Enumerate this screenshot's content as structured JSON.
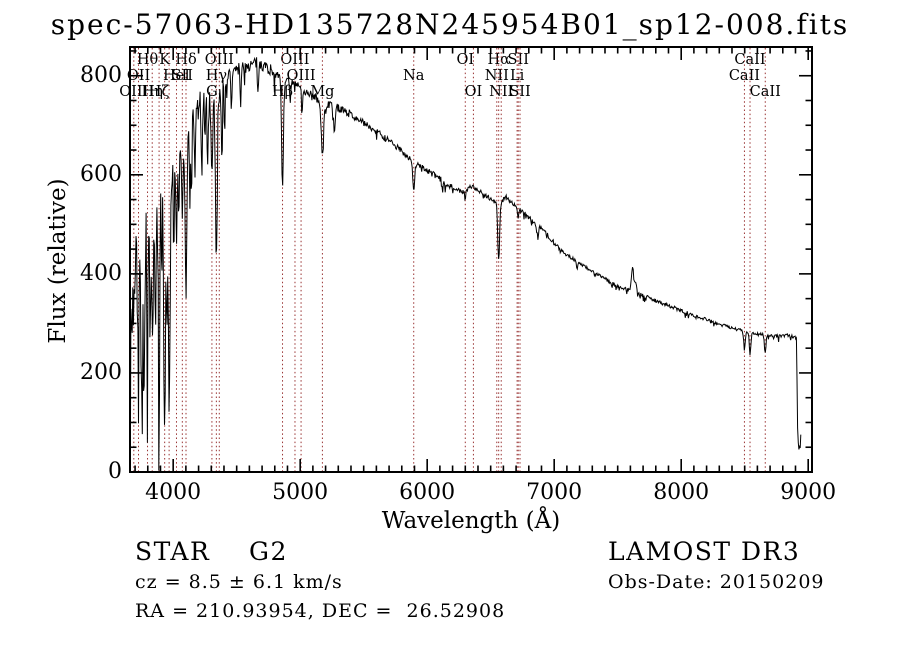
{
  "title": "spec-57063-HD135728N245954B01_sp12-008.fits",
  "footer": {
    "class": "STAR",
    "subclass": "G2",
    "cz": "cz = 8.5 ± 6.1 km/s",
    "radec": "RA = 210.93954, DEC =  26.52908",
    "survey": "LAMOST DR3",
    "obs_date": "Obs-Date: 20150209"
  },
  "chart_data": {
    "type": "line",
    "title": "spec-57063-HD135728N245954B01_sp12-008.fits",
    "xlabel": "Wavelength (Å)",
    "ylabel": "Flux (relative)",
    "xlim": [
      3660,
      9030
    ],
    "ylim": [
      0,
      858
    ],
    "xticks": [
      4000,
      5000,
      6000,
      7000,
      8000,
      9000
    ],
    "yticks": [
      0,
      200,
      400,
      600,
      800
    ],
    "x_minor_step": 100,
    "y_minor_step": 50,
    "grid": false,
    "line_color": "#000000",
    "marker_line_color": "#993333",
    "label_color": "#000000",
    "markers": [
      {
        "label": "Hθ",
        "wl": 3798,
        "row": 1
      },
      {
        "label": "K",
        "wl": 3933,
        "row": 1
      },
      {
        "label": "Hδ",
        "wl": 4101,
        "row": 1
      },
      {
        "label": "OIII",
        "wl": 4363,
        "row": 1
      },
      {
        "label": "OIII",
        "wl": 4959,
        "row": 1
      },
      {
        "label": "OI",
        "wl": 6300,
        "row": 1
      },
      {
        "label": "Hα",
        "wl": 6563,
        "row": 1
      },
      {
        "label": "SII",
        "wl": 6717,
        "row": 1
      },
      {
        "label": "CaII",
        "wl": 8542,
        "row": 1
      },
      {
        "label": "OII",
        "wl": 3727,
        "row": 2
      },
      {
        "label": "HeI",
        "wl": 4026,
        "row": 2
      },
      {
        "label": "SII",
        "wl": 4072,
        "row": 2
      },
      {
        "label": "Hγ",
        "wl": 4340,
        "row": 2
      },
      {
        "label": "OIII",
        "wl": 5007,
        "row": 2
      },
      {
        "label": "Na",
        "wl": 5894,
        "row": 2
      },
      {
        "label": "NII",
        "wl": 6548,
        "row": 2
      },
      {
        "label": "Li",
        "wl": 6708,
        "row": 2
      },
      {
        "label": "CaII",
        "wl": 8498,
        "row": 2
      },
      {
        "label": "OIII",
        "wl": 3690,
        "row": 3
      },
      {
        "label": "Hη",
        "wl": 3835,
        "row": 3
      },
      {
        "label": "Hζ",
        "wl": 3889,
        "row": 3
      },
      {
        "label": "G",
        "wl": 4305,
        "row": 3
      },
      {
        "label": "Hβ",
        "wl": 4861,
        "row": 3
      },
      {
        "label": "Mg",
        "wl": 5175,
        "row": 3
      },
      {
        "label": "OI",
        "wl": 6364,
        "row": 3
      },
      {
        "label": "NII",
        "wl": 6583,
        "row": 3
      },
      {
        "label": "SII",
        "wl": 6731,
        "row": 3
      },
      {
        "label": "CaII",
        "wl": 8662,
        "row": 3
      },
      {
        "label": "",
        "wl": 3968,
        "row": 0
      }
    ],
    "continuum": [
      [
        3660,
        280
      ],
      [
        3680,
        330
      ],
      [
        3700,
        390
      ],
      [
        3727,
        430
      ],
      [
        3760,
        480
      ],
      [
        3800,
        520
      ],
      [
        3840,
        545
      ],
      [
        3880,
        555
      ],
      [
        3920,
        565
      ],
      [
        3960,
        580
      ],
      [
        4000,
        625
      ],
      [
        4040,
        655
      ],
      [
        4080,
        670
      ],
      [
        4120,
        690
      ],
      [
        4160,
        715
      ],
      [
        4200,
        735
      ],
      [
        4240,
        755
      ],
      [
        4280,
        750
      ],
      [
        4320,
        760
      ],
      [
        4360,
        775
      ],
      [
        4400,
        790
      ],
      [
        4450,
        805
      ],
      [
        4500,
        812
      ],
      [
        4550,
        818
      ],
      [
        4600,
        820
      ],
      [
        4650,
        826
      ],
      [
        4700,
        824
      ],
      [
        4750,
        815
      ],
      [
        4800,
        805
      ],
      [
        4861,
        790
      ],
      [
        4900,
        790
      ],
      [
        4959,
        782
      ],
      [
        5007,
        775
      ],
      [
        5060,
        765
      ],
      [
        5120,
        758
      ],
      [
        5175,
        735
      ],
      [
        5230,
        742
      ],
      [
        5300,
        735
      ],
      [
        5400,
        722
      ],
      [
        5500,
        705
      ],
      [
        5600,
        688
      ],
      [
        5700,
        668
      ],
      [
        5800,
        648
      ],
      [
        5894,
        625
      ],
      [
        5960,
        615
      ],
      [
        6040,
        602
      ],
      [
        6120,
        588
      ],
      [
        6200,
        575
      ],
      [
        6280,
        565
      ],
      [
        6360,
        578
      ],
      [
        6440,
        562
      ],
      [
        6520,
        548
      ],
      [
        6563,
        540
      ],
      [
        6620,
        556
      ],
      [
        6680,
        540
      ],
      [
        6760,
        522
      ],
      [
        6840,
        505
      ],
      [
        6920,
        488
      ],
      [
        7000,
        462
      ],
      [
        7080,
        442
      ],
      [
        7160,
        428
      ],
      [
        7240,
        415
      ],
      [
        7320,
        402
      ],
      [
        7400,
        390
      ],
      [
        7480,
        378
      ],
      [
        7560,
        370
      ],
      [
        7640,
        362
      ],
      [
        7720,
        355
      ],
      [
        7800,
        346
      ],
      [
        7880,
        338
      ],
      [
        7960,
        330
      ],
      [
        8040,
        322
      ],
      [
        8120,
        315
      ],
      [
        8200,
        308
      ],
      [
        8280,
        300
      ],
      [
        8360,
        294
      ],
      [
        8440,
        288
      ],
      [
        8520,
        282
      ],
      [
        8600,
        279
      ],
      [
        8680,
        276
      ],
      [
        8760,
        274
      ],
      [
        8840,
        276
      ],
      [
        8900,
        272
      ],
      [
        8908,
        268
      ],
      [
        8918,
        70
      ],
      [
        8928,
        40
      ],
      [
        8938,
        62
      ],
      [
        8945,
        88
      ]
    ],
    "absorption_lines": [
      [
        3727,
        140,
        6
      ],
      [
        3750,
        300,
        5
      ],
      [
        3770,
        380,
        5
      ],
      [
        3798,
        260,
        6
      ],
      [
        3819,
        280,
        5
      ],
      [
        3835,
        290,
        6
      ],
      [
        3860,
        330,
        5
      ],
      [
        3889,
        470,
        6
      ],
      [
        3910,
        230,
        4
      ],
      [
        3933,
        530,
        7
      ],
      [
        3950,
        260,
        4
      ],
      [
        3968,
        480,
        7
      ],
      [
        4005,
        180,
        4
      ],
      [
        4026,
        190,
        5
      ],
      [
        4045,
        160,
        4
      ],
      [
        4072,
        150,
        5
      ],
      [
        4101,
        330,
        7
      ],
      [
        4132,
        140,
        4
      ],
      [
        4144,
        130,
        4
      ],
      [
        4172,
        120,
        4
      ],
      [
        4226,
        180,
        4
      ],
      [
        4250,
        110,
        4
      ],
      [
        4271,
        120,
        4
      ],
      [
        4305,
        150,
        7
      ],
      [
        4340,
        340,
        7
      ],
      [
        4383,
        140,
        4
      ],
      [
        4405,
        100,
        4
      ],
      [
        4458,
        80,
        4
      ],
      [
        4531,
        70,
        4
      ],
      [
        4668,
        60,
        4
      ],
      [
        4861,
        215,
        7
      ],
      [
        4921,
        50,
        4
      ],
      [
        5015,
        45,
        4
      ],
      [
        5175,
        95,
        9
      ],
      [
        5270,
        60,
        5
      ],
      [
        5894,
        62,
        7
      ],
      [
        6122,
        25,
        4
      ],
      [
        6300,
        22,
        4
      ],
      [
        6563,
        115,
        7
      ],
      [
        6717,
        18,
        4
      ],
      [
        6868,
        20,
        8
      ],
      [
        7180,
        15,
        5
      ],
      [
        8498,
        36,
        6
      ],
      [
        8542,
        44,
        6
      ],
      [
        8662,
        36,
        6
      ]
    ],
    "emission_lines": [
      [
        7618,
        52,
        9
      ],
      [
        7642,
        18,
        8
      ]
    ],
    "noise_regions": [
      [
        3660,
        3980,
        160
      ],
      [
        3980,
        4380,
        60
      ],
      [
        4380,
        4800,
        26
      ],
      [
        4800,
        5400,
        16
      ],
      [
        5400,
        6200,
        12
      ],
      [
        6200,
        7000,
        9
      ],
      [
        7000,
        8200,
        7
      ],
      [
        8200,
        9040,
        6
      ]
    ],
    "sample_step": 5
  }
}
